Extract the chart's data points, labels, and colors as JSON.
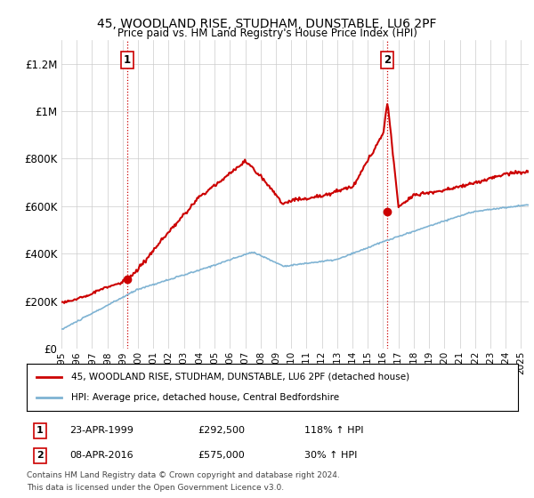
{
  "title": "45, WOODLAND RISE, STUDHAM, DUNSTABLE, LU6 2PF",
  "subtitle": "Price paid vs. HM Land Registry's House Price Index (HPI)",
  "ytick_values": [
    0,
    200000,
    400000,
    600000,
    800000,
    1000000,
    1200000
  ],
  "ylim": [
    0,
    1300000
  ],
  "xlim_start": 1995.0,
  "xlim_end": 2025.5,
  "xtick_years": [
    1995,
    1996,
    1997,
    1998,
    1999,
    2000,
    2001,
    2002,
    2003,
    2004,
    2005,
    2006,
    2007,
    2008,
    2009,
    2010,
    2011,
    2012,
    2013,
    2014,
    2015,
    2016,
    2017,
    2018,
    2019,
    2020,
    2021,
    2022,
    2023,
    2024,
    2025
  ],
  "sale1_x": 1999.31,
  "sale1_y": 292500,
  "sale1_label": "1",
  "sale2_x": 2016.28,
  "sale2_y": 575000,
  "sale2_label": "2",
  "hpi_color": "#7fb3d3",
  "price_color": "#cc0000",
  "vline_color": "#cc0000",
  "background_color": "#ffffff",
  "grid_color": "#cccccc",
  "legend_label_red": "45, WOODLAND RISE, STUDHAM, DUNSTABLE, LU6 2PF (detached house)",
  "legend_label_blue": "HPI: Average price, detached house, Central Bedfordshire",
  "info1_num": "1",
  "info1_date": "23-APR-1999",
  "info1_price": "£292,500",
  "info1_hpi": "118% ↑ HPI",
  "info2_num": "2",
  "info2_date": "08-APR-2016",
  "info2_price": "£575,000",
  "info2_hpi": "30% ↑ HPI",
  "footnote1": "Contains HM Land Registry data © Crown copyright and database right 2024.",
  "footnote2": "This data is licensed under the Open Government Licence v3.0."
}
